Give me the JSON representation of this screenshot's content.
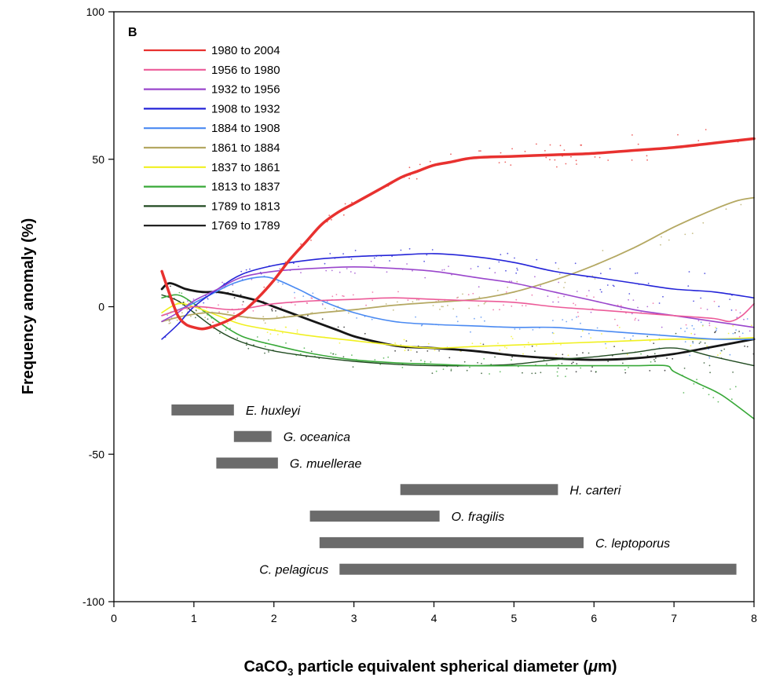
{
  "chart_data": {
    "type": "line",
    "panel_label": "B",
    "xlabel_prefix": "CaCO",
    "xlabel_sub": "3",
    "xlabel_suffix": " particle equivalent spherical diameter (",
    "xlabel_mu": "μ",
    "xlabel_end": "m)",
    "ylabel": "Frequency anomaly (%)",
    "xlim": [
      0,
      8
    ],
    "ylim": [
      -100,
      100
    ],
    "x_ticks": [
      0,
      1,
      2,
      3,
      4,
      5,
      6,
      7,
      8
    ],
    "y_ticks": [
      100,
      50,
      0,
      -50,
      -100
    ],
    "legend_position": "top-left",
    "series": [
      {
        "name": "1980 to 2004",
        "color": "#e8312f",
        "width": 3.5,
        "points": [
          [
            0.6,
            12
          ],
          [
            0.7,
            4
          ],
          [
            0.8,
            -3
          ],
          [
            0.9,
            -6
          ],
          [
            1.0,
            -7
          ],
          [
            1.1,
            -7.5
          ],
          [
            1.2,
            -7
          ],
          [
            1.4,
            -5
          ],
          [
            1.6,
            -2
          ],
          [
            1.8,
            3
          ],
          [
            2.0,
            9
          ],
          [
            2.2,
            16
          ],
          [
            2.4,
            22
          ],
          [
            2.6,
            28
          ],
          [
            2.8,
            32
          ],
          [
            3.0,
            35
          ],
          [
            3.2,
            38
          ],
          [
            3.4,
            41
          ],
          [
            3.6,
            44
          ],
          [
            3.8,
            46
          ],
          [
            4.0,
            48
          ],
          [
            4.2,
            49
          ],
          [
            4.5,
            50.5
          ],
          [
            5.0,
            51
          ],
          [
            5.5,
            51.5
          ],
          [
            6.0,
            52
          ],
          [
            6.5,
            53
          ],
          [
            7.0,
            54
          ],
          [
            7.5,
            55.5
          ],
          [
            8.0,
            57
          ]
        ]
      },
      {
        "name": "1956 to 1980",
        "color": "#ec5a98",
        "width": 1.6,
        "points": [
          [
            0.6,
            -3
          ],
          [
            1.0,
            0
          ],
          [
            1.5,
            -1
          ],
          [
            2.0,
            1
          ],
          [
            2.5,
            2
          ],
          [
            3.0,
            2.5
          ],
          [
            3.5,
            3
          ],
          [
            4.0,
            2.5
          ],
          [
            4.5,
            2
          ],
          [
            5.0,
            1.5
          ],
          [
            5.5,
            0
          ],
          [
            6.0,
            -1
          ],
          [
            6.5,
            -2
          ],
          [
            7.0,
            -3
          ],
          [
            7.5,
            -4
          ],
          [
            7.7,
            -5
          ],
          [
            7.85,
            -3
          ],
          [
            8.0,
            1
          ]
        ]
      },
      {
        "name": "1932 to 1956",
        "color": "#9a46cc",
        "width": 1.6,
        "points": [
          [
            0.6,
            -5
          ],
          [
            0.8,
            -2
          ],
          [
            1.0,
            2
          ],
          [
            1.3,
            6
          ],
          [
            1.6,
            10
          ],
          [
            2.0,
            12
          ],
          [
            2.5,
            13
          ],
          [
            3.0,
            13.5
          ],
          [
            3.5,
            13
          ],
          [
            4.0,
            12
          ],
          [
            4.5,
            10
          ],
          [
            5.0,
            8
          ],
          [
            5.5,
            5
          ],
          [
            6.0,
            2
          ],
          [
            6.5,
            -1
          ],
          [
            7.0,
            -3
          ],
          [
            7.5,
            -5
          ],
          [
            8.0,
            -7
          ]
        ]
      },
      {
        "name": "1908 to 1932",
        "color": "#2424d8",
        "width": 1.6,
        "points": [
          [
            0.6,
            -11
          ],
          [
            0.8,
            -6
          ],
          [
            1.0,
            0
          ],
          [
            1.3,
            6
          ],
          [
            1.6,
            11
          ],
          [
            2.0,
            14
          ],
          [
            2.5,
            16
          ],
          [
            3.0,
            17
          ],
          [
            3.5,
            17.5
          ],
          [
            4.0,
            18
          ],
          [
            4.5,
            17
          ],
          [
            5.0,
            15
          ],
          [
            5.5,
            12
          ],
          [
            6.0,
            10
          ],
          [
            6.5,
            8
          ],
          [
            7.0,
            6
          ],
          [
            7.5,
            5
          ],
          [
            8.0,
            3
          ]
        ]
      },
      {
        "name": "1884 to 1908",
        "color": "#4a8af2",
        "width": 1.6,
        "points": [
          [
            0.6,
            -3
          ],
          [
            0.9,
            0
          ],
          [
            1.2,
            4
          ],
          [
            1.5,
            8
          ],
          [
            1.8,
            10
          ],
          [
            2.0,
            9.5
          ],
          [
            2.3,
            6
          ],
          [
            2.6,
            2
          ],
          [
            3.0,
            -2
          ],
          [
            3.5,
            -5
          ],
          [
            4.0,
            -6
          ],
          [
            4.5,
            -6.5
          ],
          [
            5.0,
            -7
          ],
          [
            5.5,
            -7
          ],
          [
            6.0,
            -8
          ],
          [
            6.5,
            -9
          ],
          [
            7.0,
            -10
          ],
          [
            7.5,
            -11
          ],
          [
            8.0,
            -11
          ]
        ]
      },
      {
        "name": "1861 to 1884",
        "color": "#b4a862",
        "width": 1.8,
        "points": [
          [
            0.6,
            -5
          ],
          [
            0.9,
            -3
          ],
          [
            1.2,
            -2
          ],
          [
            1.5,
            -3
          ],
          [
            1.8,
            -4
          ],
          [
            2.0,
            -4
          ],
          [
            2.3,
            -3
          ],
          [
            2.6,
            -2
          ],
          [
            3.0,
            -1
          ],
          [
            3.5,
            0.5
          ],
          [
            4.0,
            1.5
          ],
          [
            4.5,
            2.5
          ],
          [
            5.0,
            5
          ],
          [
            5.5,
            9
          ],
          [
            6.0,
            14
          ],
          [
            6.5,
            20
          ],
          [
            7.0,
            27
          ],
          [
            7.5,
            33
          ],
          [
            7.8,
            36
          ],
          [
            8.0,
            37
          ]
        ]
      },
      {
        "name": "1837 to 1861",
        "color": "#f0f020",
        "width": 1.6,
        "points": [
          [
            0.6,
            -2
          ],
          [
            0.8,
            1
          ],
          [
            1.0,
            0
          ],
          [
            1.3,
            -3
          ],
          [
            1.6,
            -6
          ],
          [
            2.0,
            -8
          ],
          [
            2.5,
            -10
          ],
          [
            3.0,
            -11.5
          ],
          [
            3.5,
            -13
          ],
          [
            4.0,
            -14
          ],
          [
            4.5,
            -13.5
          ],
          [
            5.0,
            -13
          ],
          [
            5.5,
            -12.5
          ],
          [
            6.0,
            -12
          ],
          [
            6.5,
            -11.5
          ],
          [
            7.0,
            -11
          ],
          [
            7.5,
            -11
          ],
          [
            8.0,
            -10.5
          ]
        ]
      },
      {
        "name": "1813 to 1837",
        "color": "#38a838",
        "width": 1.6,
        "points": [
          [
            0.6,
            3
          ],
          [
            0.8,
            4
          ],
          [
            1.0,
            1
          ],
          [
            1.3,
            -5
          ],
          [
            1.6,
            -10
          ],
          [
            2.0,
            -13
          ],
          [
            2.5,
            -16
          ],
          [
            3.0,
            -18
          ],
          [
            3.5,
            -19
          ],
          [
            4.0,
            -19.5
          ],
          [
            4.5,
            -20
          ],
          [
            5.0,
            -20
          ],
          [
            5.5,
            -20
          ],
          [
            6.0,
            -20
          ],
          [
            6.5,
            -20
          ],
          [
            6.9,
            -20
          ],
          [
            7.0,
            -22
          ],
          [
            7.3,
            -26
          ],
          [
            7.6,
            -30
          ],
          [
            8.0,
            -38
          ]
        ]
      },
      {
        "name": "1789 to 1813",
        "color": "#204a20",
        "width": 1.4,
        "points": [
          [
            0.6,
            4
          ],
          [
            0.8,
            2
          ],
          [
            1.0,
            -2
          ],
          [
            1.3,
            -8
          ],
          [
            1.6,
            -12
          ],
          [
            2.0,
            -15
          ],
          [
            2.5,
            -17
          ],
          [
            3.0,
            -18.5
          ],
          [
            3.5,
            -19.5
          ],
          [
            4.0,
            -20
          ],
          [
            4.5,
            -20
          ],
          [
            5.0,
            -19.5
          ],
          [
            5.5,
            -18
          ],
          [
            6.0,
            -17
          ],
          [
            6.5,
            -15.5
          ],
          [
            7.0,
            -14
          ],
          [
            7.5,
            -17
          ],
          [
            8.0,
            -20
          ]
        ]
      },
      {
        "name": "1769 to 1789",
        "color": "#161616",
        "width": 2.8,
        "points": [
          [
            0.6,
            6
          ],
          [
            0.7,
            8
          ],
          [
            0.9,
            6
          ],
          [
            1.1,
            5
          ],
          [
            1.3,
            5
          ],
          [
            1.5,
            4
          ],
          [
            1.8,
            2
          ],
          [
            2.0,
            0
          ],
          [
            2.2,
            -2
          ],
          [
            2.5,
            -5
          ],
          [
            2.8,
            -8
          ],
          [
            3.0,
            -10
          ],
          [
            3.3,
            -12
          ],
          [
            3.6,
            -13.5
          ],
          [
            4.0,
            -14
          ],
          [
            4.5,
            -15
          ],
          [
            5.0,
            -16.5
          ],
          [
            5.5,
            -17.5
          ],
          [
            6.0,
            -18
          ],
          [
            6.5,
            -17.5
          ],
          [
            7.0,
            -16
          ],
          [
            7.5,
            -13.5
          ],
          [
            8.0,
            -11
          ]
        ]
      }
    ],
    "species": [
      {
        "name": "E. huxleyi",
        "x0": 0.72,
        "x1": 1.5,
        "y": -35
      },
      {
        "name": "G. oceanica",
        "x0": 1.5,
        "x1": 1.97,
        "y": -44
      },
      {
        "name": "G. muellerae",
        "x0": 1.28,
        "x1": 2.05,
        "y": -53
      },
      {
        "name": "H. carteri",
        "x0": 3.58,
        "x1": 5.55,
        "y": -62
      },
      {
        "name": "O. fragilis",
        "x0": 2.45,
        "x1": 4.07,
        "y": -71
      },
      {
        "name": "C. leptoporus",
        "x0": 2.57,
        "x1": 5.87,
        "y": -80
      },
      {
        "name": "C. pelagicus",
        "x0": 2.82,
        "x1": 7.78,
        "y": -89
      }
    ]
  }
}
